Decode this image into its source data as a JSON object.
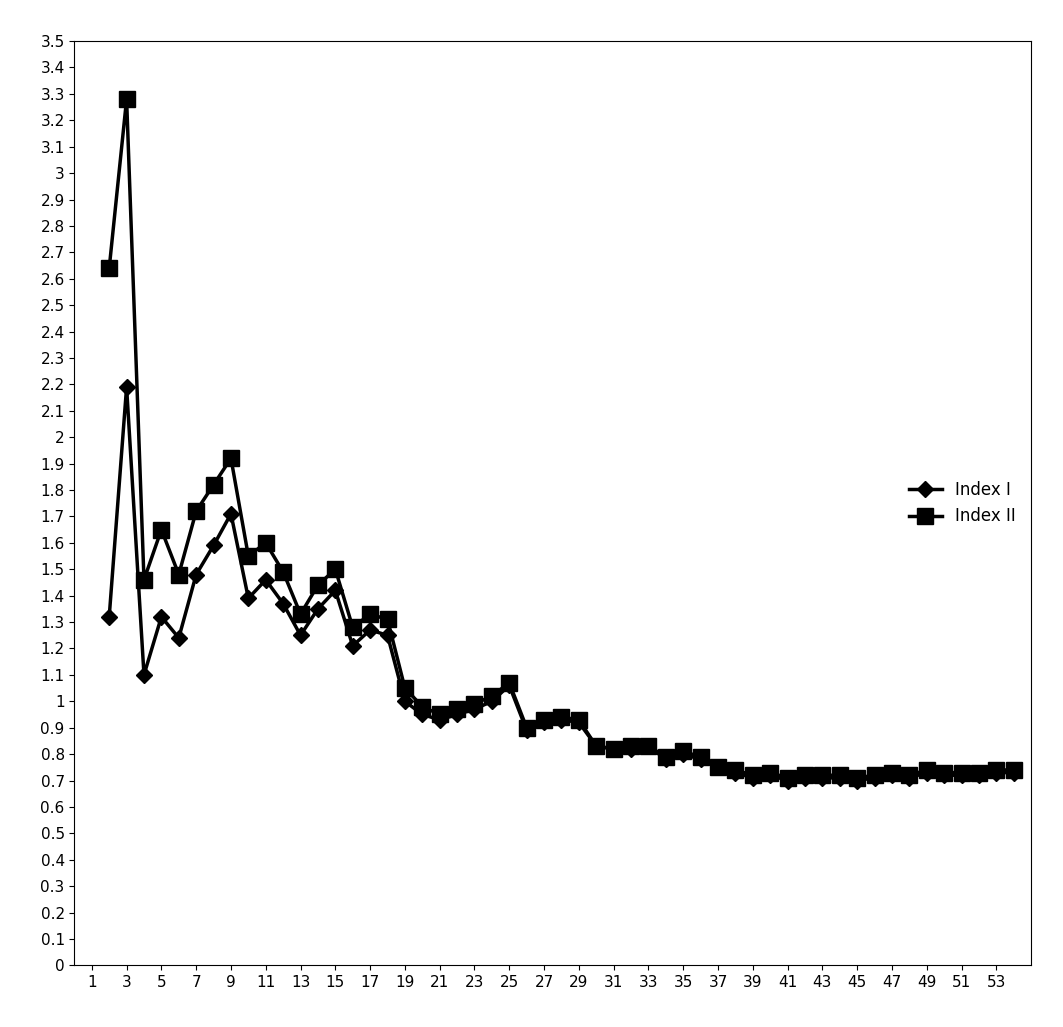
{
  "chart_data": {
    "type": "line",
    "x": [
      2,
      3,
      4,
      5,
      6,
      7,
      8,
      9,
      10,
      11,
      12,
      13,
      14,
      15,
      16,
      17,
      18,
      19,
      20,
      21,
      22,
      23,
      24,
      25,
      26,
      27,
      28,
      29,
      30,
      31,
      32,
      33,
      34,
      35,
      36,
      37,
      38,
      39,
      40,
      41,
      42,
      43,
      44,
      45,
      46,
      47,
      48,
      49,
      50,
      51,
      52,
      53,
      54
    ],
    "series": [
      {
        "name": "Index I",
        "color": "#000000",
        "marker": "diamond",
        "line_style": "solid",
        "values": [
          1.32,
          2.19,
          1.1,
          1.32,
          1.24,
          1.48,
          1.59,
          1.71,
          1.39,
          1.46,
          1.37,
          1.25,
          1.35,
          1.42,
          1.21,
          1.27,
          1.25,
          1.0,
          0.95,
          0.93,
          0.95,
          0.97,
          1.0,
          1.06,
          0.89,
          0.92,
          0.93,
          0.92,
          0.83,
          0.82,
          0.82,
          0.83,
          0.78,
          0.8,
          0.78,
          0.75,
          0.73,
          0.71,
          0.72,
          0.7,
          0.71,
          0.71,
          0.71,
          0.7,
          0.71,
          0.72,
          0.71,
          0.73,
          0.72,
          0.72,
          0.72,
          0.73,
          0.73
        ]
      },
      {
        "name": "Index II",
        "color": "#000000",
        "marker": "square",
        "line_style": "solid",
        "values": [
          2.64,
          3.28,
          1.46,
          1.65,
          1.48,
          1.72,
          1.82,
          1.92,
          1.55,
          1.6,
          1.49,
          1.33,
          1.44,
          1.5,
          1.28,
          1.33,
          1.31,
          1.05,
          0.98,
          0.95,
          0.97,
          0.99,
          1.02,
          1.07,
          0.9,
          0.93,
          0.94,
          0.93,
          0.83,
          0.82,
          0.83,
          0.83,
          0.79,
          0.81,
          0.79,
          0.75,
          0.74,
          0.72,
          0.73,
          0.71,
          0.72,
          0.72,
          0.72,
          0.71,
          0.72,
          0.73,
          0.72,
          0.74,
          0.73,
          0.73,
          0.73,
          0.74,
          0.74
        ]
      }
    ],
    "xlim": [
      0,
      55
    ],
    "xticks": [
      1,
      3,
      5,
      7,
      9,
      11,
      13,
      15,
      17,
      19,
      21,
      23,
      25,
      27,
      29,
      31,
      33,
      35,
      37,
      39,
      41,
      43,
      45,
      47,
      49,
      51,
      53
    ],
    "ylim": [
      0,
      3.5
    ],
    "yticks": [
      0,
      0.1,
      0.2,
      0.3,
      0.4,
      0.5,
      0.6,
      0.7,
      0.8,
      0.9,
      1,
      1.1,
      1.2,
      1.3,
      1.4,
      1.5,
      1.6,
      1.7,
      1.8,
      1.9,
      2,
      2.1,
      2.2,
      2.3,
      2.4,
      2.5,
      2.6,
      2.7,
      2.8,
      2.9,
      3,
      3.1,
      3.2,
      3.3,
      3.4,
      3.5
    ],
    "grid": false,
    "legend": "center right"
  }
}
